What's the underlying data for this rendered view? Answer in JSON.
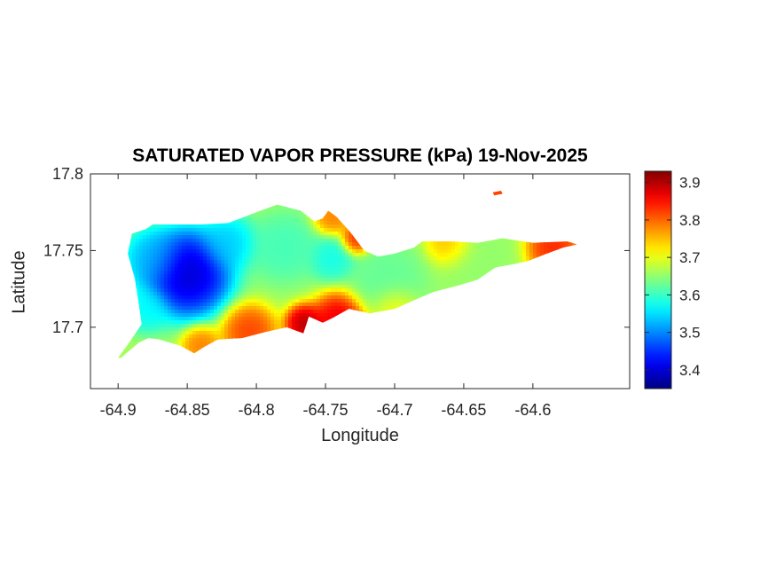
{
  "chart_data": {
    "type": "heatmap",
    "title": "SATURATED VAPOR PRESSURE (kPa) 19-Nov-2025",
    "xlabel": "Longitude",
    "ylabel": "Latitude",
    "xlim": [
      -64.92,
      -64.53
    ],
    "ylim": [
      17.66,
      17.8
    ],
    "xticks": [
      -64.9,
      -64.85,
      -64.8,
      -64.75,
      -64.7,
      -64.65,
      -64.6
    ],
    "xtick_labels": [
      "-64.9",
      "-64.85",
      "-64.8",
      "-64.75",
      "-64.7",
      "-64.65",
      "-64.6"
    ],
    "yticks": [
      17.7,
      17.75,
      17.8
    ],
    "ytick_labels": [
      "17.7",
      "17.75",
      "17.8"
    ],
    "colorbar": {
      "colormap": "jet",
      "clim": [
        3.35,
        3.93
      ],
      "ticks": [
        3.4,
        3.5,
        3.6,
        3.7,
        3.8,
        3.9
      ],
      "tick_labels": [
        "3.4",
        "3.5",
        "3.6",
        "3.7",
        "3.8",
        "3.9"
      ]
    },
    "island_outline": [
      [
        -64.898,
        17.68
      ],
      [
        -64.885,
        17.69
      ],
      [
        -64.878,
        17.693
      ],
      [
        -64.87,
        17.692
      ],
      [
        -64.855,
        17.688
      ],
      [
        -64.845,
        17.683
      ],
      [
        -64.838,
        17.687
      ],
      [
        -64.828,
        17.692
      ],
      [
        -64.81,
        17.693
      ],
      [
        -64.793,
        17.697
      ],
      [
        -64.778,
        17.7
      ],
      [
        -64.766,
        17.696
      ],
      [
        -64.762,
        17.707
      ],
      [
        -64.752,
        17.703
      ],
      [
        -64.745,
        17.706
      ],
      [
        -64.733,
        17.712
      ],
      [
        -64.718,
        17.709
      ],
      [
        -64.7,
        17.712
      ],
      [
        -64.685,
        17.718
      ],
      [
        -64.672,
        17.723
      ],
      [
        -64.655,
        17.727
      ],
      [
        -64.64,
        17.731
      ],
      [
        -64.627,
        17.739
      ],
      [
        -64.615,
        17.741
      ],
      [
        -64.604,
        17.743
      ],
      [
        -64.59,
        17.748
      ],
      [
        -64.578,
        17.752
      ],
      [
        -64.568,
        17.754
      ],
      [
        -64.575,
        17.756
      ],
      [
        -64.6,
        17.755
      ],
      [
        -64.622,
        17.758
      ],
      [
        -64.64,
        17.755
      ],
      [
        -64.66,
        17.756
      ],
      [
        -64.68,
        17.756
      ],
      [
        -64.686,
        17.752
      ],
      [
        -64.7,
        17.748
      ],
      [
        -64.712,
        17.746
      ],
      [
        -64.722,
        17.75
      ],
      [
        -64.732,
        17.762
      ],
      [
        -64.742,
        17.772
      ],
      [
        -64.748,
        17.776
      ],
      [
        -64.752,
        17.771
      ],
      [
        -64.758,
        17.769
      ],
      [
        -64.768,
        17.776
      ],
      [
        -64.785,
        17.78
      ],
      [
        -64.8,
        17.775
      ],
      [
        -64.82,
        17.768
      ],
      [
        -64.84,
        17.767
      ],
      [
        -64.862,
        17.767
      ],
      [
        -64.875,
        17.767
      ],
      [
        -64.88,
        17.764
      ],
      [
        -64.89,
        17.761
      ],
      [
        -64.893,
        17.748
      ],
      [
        -64.888,
        17.732
      ],
      [
        -64.885,
        17.715
      ],
      [
        -64.883,
        17.702
      ],
      [
        -64.892,
        17.69
      ],
      [
        -64.9,
        17.68
      ]
    ],
    "islet_outline": [
      [
        -64.629,
        17.788
      ],
      [
        -64.623,
        17.789
      ],
      [
        -64.622,
        17.787
      ],
      [
        -64.628,
        17.786
      ]
    ],
    "field_features": [
      {
        "lon": -64.85,
        "lat": 17.735,
        "value": 3.36,
        "spread": 0.022
      },
      {
        "lon": -64.875,
        "lat": 17.745,
        "value": 3.52,
        "spread": 0.015
      },
      {
        "lon": -64.82,
        "lat": 17.755,
        "value": 3.53,
        "spread": 0.014
      },
      {
        "lon": -64.88,
        "lat": 17.712,
        "value": 3.56,
        "spread": 0.012
      },
      {
        "lon": -64.78,
        "lat": 17.752,
        "value": 3.6,
        "spread": 0.018
      },
      {
        "lon": -64.745,
        "lat": 17.745,
        "value": 3.57,
        "spread": 0.012
      },
      {
        "lon": -64.705,
        "lat": 17.73,
        "value": 3.62,
        "spread": 0.02
      },
      {
        "lon": -64.64,
        "lat": 17.745,
        "value": 3.65,
        "spread": 0.02
      },
      {
        "lon": -64.74,
        "lat": 17.705,
        "value": 3.9,
        "spread": 0.014
      },
      {
        "lon": -64.765,
        "lat": 17.702,
        "value": 3.93,
        "spread": 0.01
      },
      {
        "lon": -64.805,
        "lat": 17.697,
        "value": 3.84,
        "spread": 0.014
      },
      {
        "lon": -64.84,
        "lat": 17.688,
        "value": 3.8,
        "spread": 0.01
      },
      {
        "lon": -64.745,
        "lat": 17.772,
        "value": 3.8,
        "spread": 0.01
      },
      {
        "lon": -64.728,
        "lat": 17.757,
        "value": 3.86,
        "spread": 0.008
      },
      {
        "lon": -64.585,
        "lat": 17.752,
        "value": 3.86,
        "spread": 0.014
      },
      {
        "lon": -64.66,
        "lat": 17.755,
        "value": 3.77,
        "spread": 0.012
      },
      {
        "lon": -64.7,
        "lat": 17.712,
        "value": 3.73,
        "spread": 0.012
      }
    ],
    "background_value": 3.66
  }
}
